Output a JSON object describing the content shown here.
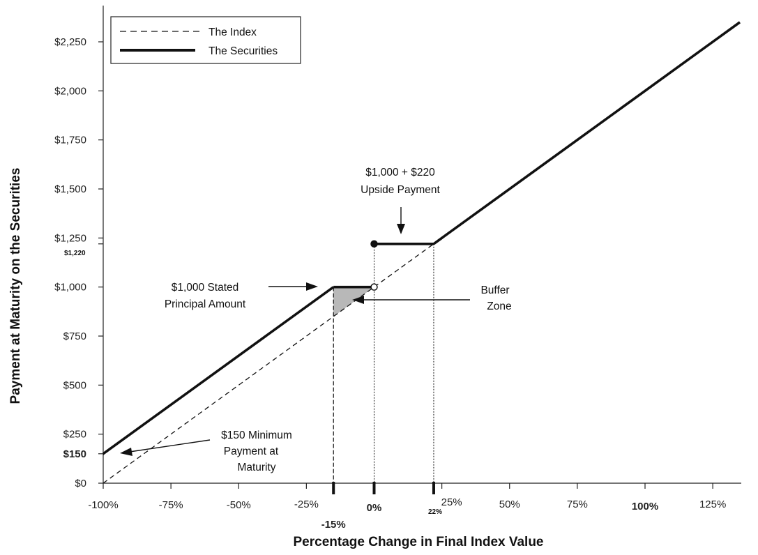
{
  "chart_data": {
    "type": "line",
    "xlabel": "Percentage Change in Final Index Value",
    "ylabel": "Payment at Maturity on the Securities",
    "xlim": [
      -100,
      135
    ],
    "ylim": [
      0,
      2400
    ],
    "x_ticks": [
      {
        "value": -100,
        "label": "-100%"
      },
      {
        "value": -75,
        "label": "-75%"
      },
      {
        "value": -50,
        "label": "-50%"
      },
      {
        "value": -25,
        "label": "-25%"
      },
      {
        "value": 0,
        "label": "0%",
        "bold": true
      },
      {
        "value": 25,
        "label": "25%"
      },
      {
        "value": 50,
        "label": "50%"
      },
      {
        "value": 75,
        "label": "75%"
      },
      {
        "value": 100,
        "label": "100%",
        "bold": true
      },
      {
        "value": 125,
        "label": "125%"
      }
    ],
    "x_extra_ticks": [
      {
        "value": -15,
        "label": "-15%"
      },
      {
        "value": 22,
        "label": "22%"
      }
    ],
    "y_ticks": [
      {
        "value": 0,
        "label": "$0"
      },
      {
        "value": 150,
        "label": "$150",
        "bold": true
      },
      {
        "value": 250,
        "label": "$250"
      },
      {
        "value": 500,
        "label": "$500"
      },
      {
        "value": 750,
        "label": "$750"
      },
      {
        "value": 1000,
        "label": "$1,000"
      },
      {
        "value": 1250,
        "label": "$1,250"
      },
      {
        "value": 1500,
        "label": "$1,500"
      },
      {
        "value": 1750,
        "label": "$1,750"
      },
      {
        "value": 2000,
        "label": "$2,000"
      },
      {
        "value": 2250,
        "label": "$2,250"
      }
    ],
    "y_extra_ticks": [
      {
        "value": 1220,
        "label": "$1,220"
      }
    ],
    "legend": {
      "placement": "top-left",
      "entries": [
        "The Index",
        "The Securities"
      ]
    },
    "series": [
      {
        "name": "The Index",
        "style": "dashed",
        "x": [
          -100,
          135
        ],
        "y": [
          0,
          2350
        ]
      },
      {
        "name": "The Securities",
        "style": "solid",
        "segments": [
          {
            "x": [
              -100,
              -15
            ],
            "y": [
              150,
              1000
            ]
          },
          {
            "x": [
              -15,
              0
            ],
            "y": [
              1000,
              1000
            ]
          },
          {
            "x": [
              0,
              22
            ],
            "y": [
              1220,
              1220
            ]
          },
          {
            "x": [
              22,
              135
            ],
            "y": [
              1220,
              2350
            ]
          }
        ],
        "open_point": {
          "x": 0,
          "y": 1000
        },
        "closed_point": {
          "x": 0,
          "y": 1220
        }
      }
    ],
    "buffer_zone": {
      "x_from": -15,
      "x_to": 0
    },
    "annotations": {
      "upside": {
        "line1": "$1,000 + $220",
        "line2": "Upside Payment"
      },
      "principal": {
        "line1": "$1,000 Stated",
        "line2": "Principal Amount"
      },
      "buffer": {
        "line1": "Buffer",
        "line2": "Zone"
      },
      "minimum": {
        "line1": "$150 Minimum",
        "line2": "Payment at",
        "line3": "Maturity"
      }
    },
    "colors": {
      "line": "#111111",
      "buffer_fill": "#b8b8b8"
    }
  }
}
